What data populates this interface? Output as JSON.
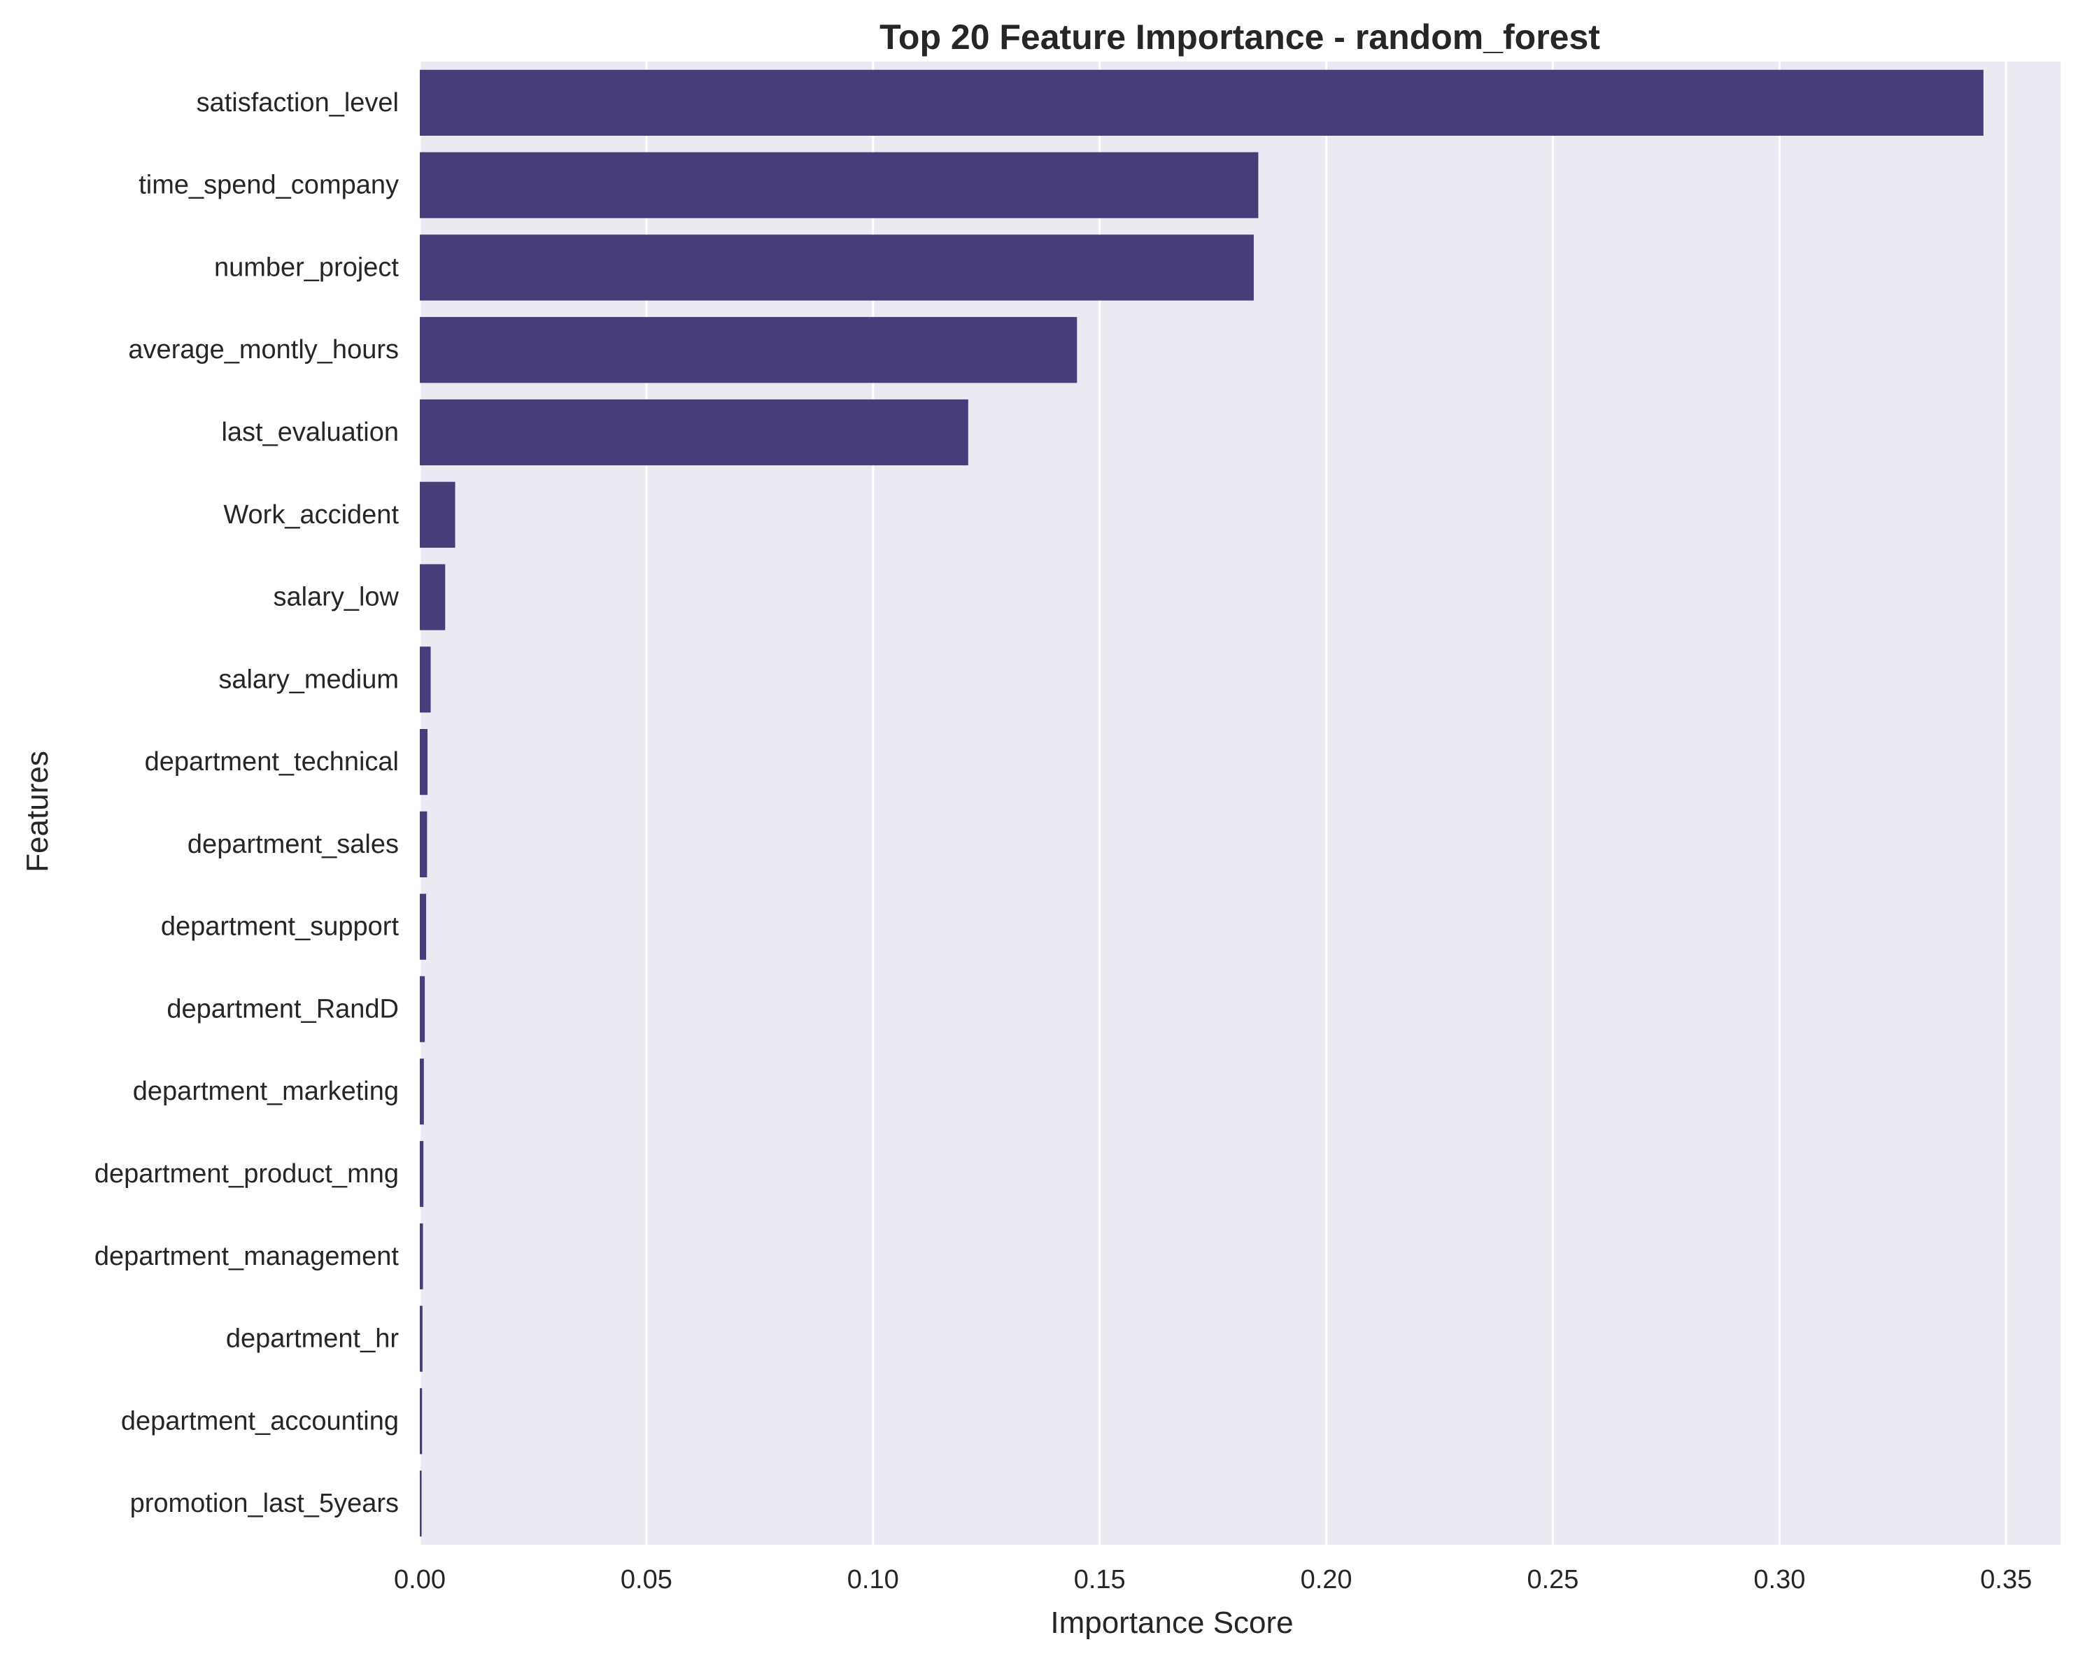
{
  "chart_data": {
    "type": "bar",
    "orientation": "horizontal",
    "title": "Top 20 Feature Importance - random_forest",
    "xlabel": "Importance Score",
    "ylabel": "Features",
    "xlim": [
      0,
      0.362
    ],
    "xticks": [
      0.0,
      0.05,
      0.1,
      0.15,
      0.2,
      0.25,
      0.3,
      0.35
    ],
    "xtick_labels": [
      "0.00",
      "0.05",
      "0.10",
      "0.15",
      "0.20",
      "0.25",
      "0.30",
      "0.35"
    ],
    "grid": true,
    "bar_color": "#483d7a",
    "background_color": "#eaeaf2",
    "grid_color": "#ffffff",
    "categories": [
      "satisfaction_level",
      "time_spend_company",
      "number_project",
      "average_montly_hours",
      "last_evaluation",
      "Work_accident",
      "salary_low",
      "salary_medium",
      "department_technical",
      "department_sales",
      "department_support",
      "department_RandD",
      "department_marketing",
      "department_product_mng",
      "department_management",
      "department_hr",
      "department_accounting",
      "promotion_last_5years"
    ],
    "values": [
      0.345,
      0.185,
      0.184,
      0.145,
      0.121,
      0.0078,
      0.0056,
      0.0024,
      0.0017,
      0.0016,
      0.0014,
      0.0011,
      0.0009,
      0.0008,
      0.0007,
      0.0006,
      0.0005,
      0.0004
    ]
  }
}
